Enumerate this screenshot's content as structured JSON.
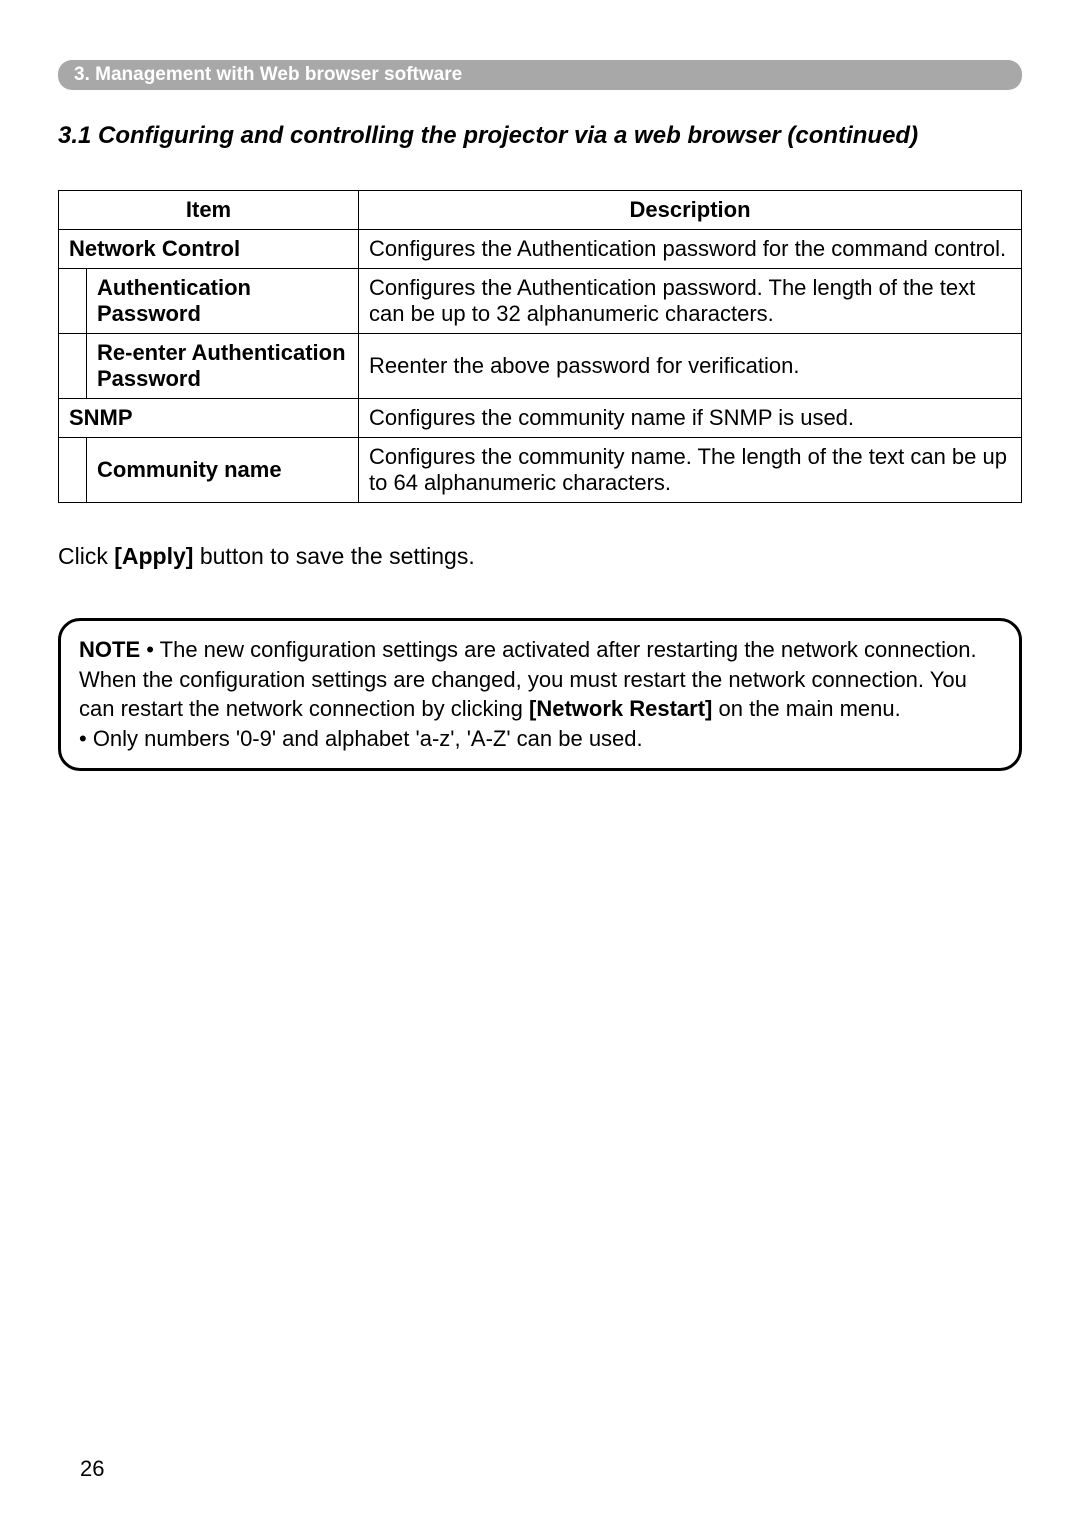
{
  "header": {
    "tab": "3. Management with Web browser software"
  },
  "section": {
    "title": "3.1 Configuring and controlling the projector via a web browser (continued)"
  },
  "table": {
    "columns": {
      "item": "Item",
      "description": "Description"
    },
    "rows": [
      {
        "item": "Network Control",
        "description": "Configures the Authentication password for the command control.",
        "indented": false
      },
      {
        "item": "Authentication Password",
        "description": "Configures the Authentication password. The length of the text can be up to 32 alphanumeric characters.",
        "indented": true
      },
      {
        "item": "Re-enter Authentication Password",
        "description": "Reenter the above password for verification.",
        "indented": true
      },
      {
        "item": "SNMP",
        "description": "Configures the community name if SNMP is used.",
        "indented": false
      },
      {
        "item": "Community name",
        "description": "Configures the community name. The length of the text can be up to 64 alphanumeric characters.",
        "indented": true
      }
    ]
  },
  "body": {
    "click_text_1": "Click ",
    "apply_label": "[Apply]",
    "click_text_2": " button to save the settings."
  },
  "note": {
    "label": "NOTE",
    "bullet1_part1": " • The new configuration settings are activated after restarting the network connection. When the configuration settings are changed, you must restart the network connection. You can restart the network connection by clicking ",
    "network_restart": "[Network Restart]",
    "bullet1_part2": " on the main menu.",
    "bullet2": "• Only numbers '0-9' and alphabet 'a-z', 'A-Z' can be used."
  },
  "page_number": "26"
}
